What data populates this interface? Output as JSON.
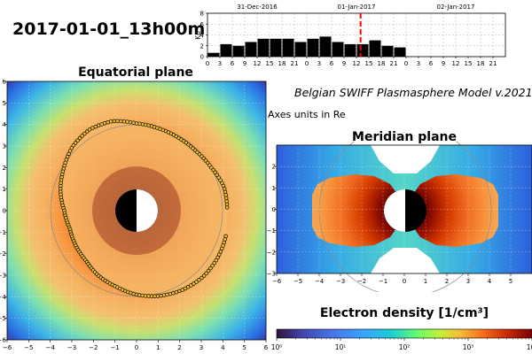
{
  "header": {
    "datetime": "2017-01-01_13h00m",
    "model_name": "Belgian SWIFF Plasmasphere Model v.2021",
    "units_note": "Axes units in Re"
  },
  "panels": {
    "equatorial_title": "Equatorial plane",
    "meridian_title": "Meridian plane",
    "density_title": "Electron density [1/cm³]"
  },
  "colors": {
    "bar_fill": "#000000",
    "current_time_line": "#ff0000",
    "plasmapause_marker": "#f0c030"
  },
  "chart_data": [
    {
      "type": "bar",
      "name": "kp-index",
      "ylabel": "Kp",
      "ylim": [
        0,
        8
      ],
      "yticks": [
        0,
        2,
        4,
        6,
        8
      ],
      "xticks": [
        "0",
        "3",
        "6",
        "9",
        "12",
        "15",
        "18",
        "21",
        "0",
        "3",
        "6",
        "9",
        "12",
        "15",
        "18",
        "21",
        "0",
        "3",
        "6",
        "9",
        "12",
        "15",
        "18",
        "21"
      ],
      "day_labels": [
        "31-Dec-2016",
        "01-Jan-2017",
        "02-Jan-2017"
      ],
      "values": [
        0.7,
        2.3,
        2.0,
        2.7,
        3.3,
        3.3,
        3.3,
        2.7,
        3.3,
        3.7,
        2.7,
        2.3,
        2.3,
        3.0,
        2.0,
        1.7
      ],
      "current_time_hours": 37,
      "hours_per_bar": 3,
      "total_hours": 72
    },
    {
      "type": "heatmap",
      "name": "equatorial-plane",
      "xlabel": "",
      "ylabel": "",
      "xlim": [
        -6,
        6
      ],
      "ylim": [
        -6,
        6
      ],
      "xticks": [
        -6,
        -5,
        -4,
        -3,
        -2,
        -1,
        0,
        1,
        2,
        3,
        4,
        5,
        6
      ],
      "yticks": [
        -6,
        -5,
        -4,
        -3,
        -2,
        -1,
        0,
        1,
        2,
        3,
        4,
        5,
        6
      ],
      "plasmapause_radius_re": [
        4.2,
        4.2,
        4.0,
        3.9,
        3.9,
        3.95,
        4.05,
        4.3,
        4.35,
        4.2,
        3.9,
        3.65,
        3.35,
        3.2,
        3.25,
        3.3,
        3.5,
        3.65,
        3.9,
        4.1,
        4.25,
        4.35,
        4.35,
        4.3
      ]
    },
    {
      "type": "heatmap",
      "name": "meridian-plane",
      "xlim": [
        -6,
        6
      ],
      "ylim": [
        -3,
        3
      ],
      "xticks": [
        -6,
        -5,
        -4,
        -3,
        -2,
        -1,
        0,
        1,
        2,
        3,
        4,
        5
      ],
      "yticks": [
        -3,
        -2,
        -1,
        0,
        1,
        2
      ]
    },
    {
      "type": "colorbar",
      "name": "electron-density",
      "scale": "log",
      "range": [
        1,
        10000
      ],
      "tick_labels": [
        "10⁰",
        "10¹",
        "10²",
        "10³",
        "10⁴"
      ]
    }
  ]
}
